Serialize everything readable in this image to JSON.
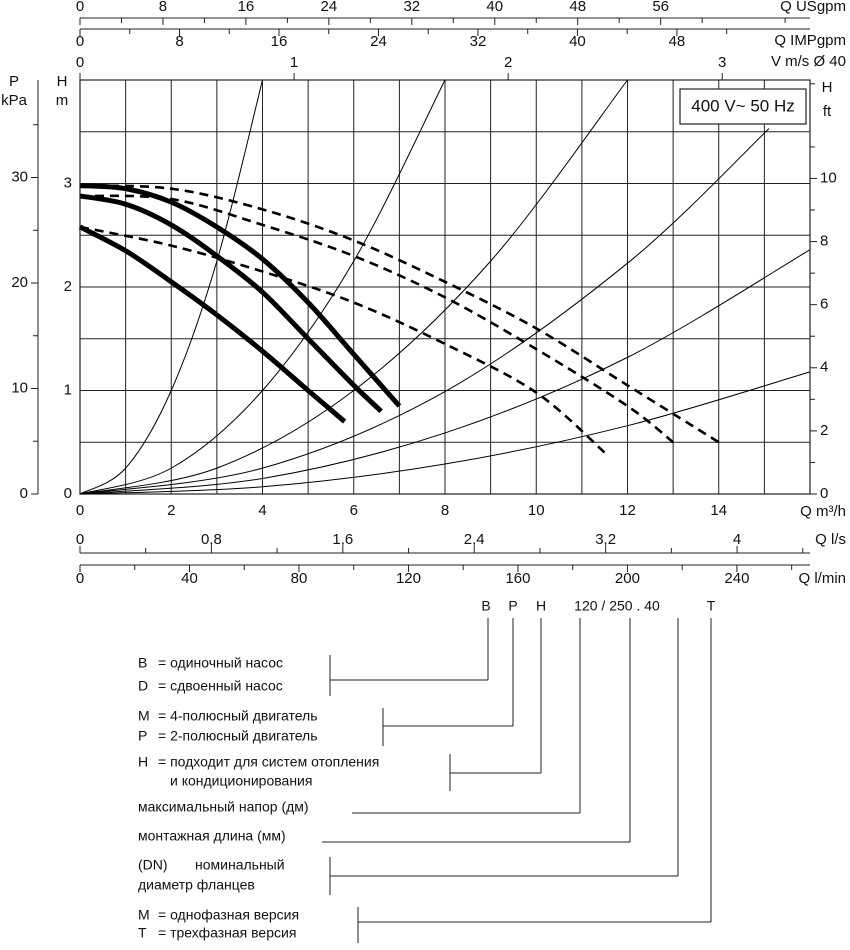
{
  "chart_data": {
    "type": "line",
    "annotation": "400 V~ 50 Hz",
    "x_label": "Q m³/h",
    "y_label": [
      "H",
      "m"
    ],
    "xlim": [
      0,
      16
    ],
    "xticks": [
      0,
      2,
      4,
      6,
      8,
      10,
      12,
      14
    ],
    "x_minor_ticks": [
      1,
      3,
      5,
      7,
      9,
      11,
      13,
      15
    ],
    "ylim": [
      0,
      4
    ],
    "yticks": [
      0,
      1,
      2,
      3
    ],
    "y_minor_ticks": [
      0.5,
      1.5,
      2.5,
      3.5
    ],
    "grid": true,
    "axes": [
      {
        "position": "top",
        "label": [
          "Q USgpm"
        ],
        "lim": [
          0,
          70.4
        ],
        "ticks": [
          0,
          8,
          16,
          24,
          32,
          40,
          48,
          56
        ],
        "minor_ticks": [
          4,
          12,
          20,
          28,
          36,
          44,
          52,
          60,
          68
        ]
      },
      {
        "position": "top",
        "label": [
          "Q IMPgpm"
        ],
        "lim": [
          0,
          58.7
        ],
        "ticks": [
          0,
          8,
          16,
          24,
          32,
          40,
          48
        ],
        "minor_ticks": [
          4,
          12,
          20,
          28,
          36,
          44,
          52
        ]
      },
      {
        "position": "top",
        "label": [
          "V m/s Ø 40"
        ],
        "lim": [
          0,
          3.41
        ],
        "ticks": [
          0,
          1,
          2,
          3
        ],
        "minor_ticks": []
      },
      {
        "position": "left",
        "label": [
          "P",
          "kPa"
        ],
        "lim": [
          0,
          39.24
        ],
        "ticks": [
          0,
          10,
          20,
          30
        ],
        "minor_ticks": [
          5,
          15,
          25,
          35
        ]
      },
      {
        "position": "right",
        "label": [
          "H",
          "ft"
        ],
        "lim": [
          0,
          13.12
        ],
        "ticks": [
          0,
          2,
          4,
          6,
          8,
          10
        ],
        "minor_ticks": [
          1,
          3,
          5,
          7,
          9,
          11,
          13
        ]
      },
      {
        "position": "bottom",
        "label": [
          "Q l/s"
        ],
        "lim": [
          0,
          4.444
        ],
        "ticks": [
          0,
          {
            "value": 0.8,
            "label": "0,8"
          },
          {
            "value": 1.6,
            "label": "1,6"
          },
          {
            "value": 2.4,
            "label": "2,4"
          },
          {
            "value": 3.2,
            "label": "3,2"
          },
          4
        ],
        "minor_ticks": [
          0.4,
          1.2,
          2,
          2.8,
          3.6,
          4.4
        ]
      },
      {
        "position": "bottom",
        "label": [
          "Q l/min"
        ],
        "lim": [
          0,
          266.7
        ],
        "ticks": [
          0,
          40,
          80,
          120,
          160,
          200,
          240
        ],
        "minor_ticks": [
          20,
          60,
          100,
          140,
          180,
          220,
          260
        ]
      }
    ],
    "series": [
      {
        "style": "thin",
        "color": "#000000",
        "x": [
          0,
          1,
          2,
          3,
          4
        ],
        "values": [
          0,
          0.25,
          1,
          2.25,
          4
        ]
      },
      {
        "style": "thin",
        "color": "#000000",
        "x": [
          0,
          2,
          4,
          6,
          8
        ],
        "values": [
          0,
          0.25,
          1,
          2.25,
          4
        ]
      },
      {
        "style": "thin",
        "color": "#000000",
        "x": [
          0,
          3,
          6,
          9,
          12
        ],
        "values": [
          0,
          0.25,
          1,
          2.25,
          4
        ]
      },
      {
        "style": "thin",
        "color": "#000000",
        "x": [
          0,
          4,
          8,
          12,
          15.1
        ],
        "values": [
          0,
          0.25,
          0.99,
          2.23,
          3.53
        ]
      },
      {
        "style": "thin",
        "color": "#000000",
        "x": [
          0,
          4,
          8,
          12,
          16
        ],
        "values": [
          0,
          0.15,
          0.59,
          1.32,
          2.36
        ]
      },
      {
        "style": "thin",
        "color": "#000000",
        "x": [
          0,
          4,
          8,
          12,
          16
        ],
        "values": [
          0,
          0.07,
          0.29,
          0.66,
          1.18
        ]
      },
      {
        "style": "solid",
        "color": "#000000",
        "x": [
          0,
          1,
          2,
          3,
          4,
          5,
          6,
          7
        ],
        "values": [
          2.98,
          2.95,
          2.82,
          2.58,
          2.27,
          1.85,
          1.35,
          0.85
        ]
      },
      {
        "style": "solid",
        "color": "#000000",
        "x": [
          0,
          1,
          2,
          3,
          4,
          5,
          6,
          6.6
        ],
        "values": [
          2.88,
          2.8,
          2.6,
          2.3,
          1.95,
          1.5,
          1.05,
          0.8
        ]
      },
      {
        "style": "solid",
        "color": "#000000",
        "x": [
          0,
          1,
          2,
          3,
          4,
          5,
          5.8
        ],
        "values": [
          2.58,
          2.35,
          2.05,
          1.73,
          1.38,
          1.0,
          0.7
        ]
      },
      {
        "style": "dashed",
        "color": "#000000",
        "x": [
          0,
          2,
          4,
          6,
          8,
          10,
          12,
          14
        ],
        "values": [
          2.98,
          2.95,
          2.75,
          2.45,
          2.05,
          1.6,
          1.05,
          0.5
        ]
      },
      {
        "style": "dashed",
        "color": "#000000",
        "x": [
          0,
          2,
          4,
          6,
          8,
          10,
          12,
          13
        ],
        "values": [
          2.88,
          2.85,
          2.6,
          2.3,
          1.9,
          1.4,
          0.85,
          0.5
        ]
      },
      {
        "style": "dashed",
        "color": "#000000",
        "x": [
          0,
          2,
          4,
          6,
          8,
          10,
          11.5
        ],
        "values": [
          2.58,
          2.4,
          2.15,
          1.85,
          1.45,
          0.98,
          0.4
        ]
      }
    ]
  },
  "designation": {
    "code": [
      "B",
      "P",
      "H",
      "120 / 250 . 40",
      "T"
    ],
    "groups": [
      {
        "items": [
          {
            "code": "B",
            "text": "= одиночный насос"
          },
          {
            "code": "D",
            "text": "= сдвоенный насос"
          }
        ]
      },
      {
        "items": [
          {
            "code": "M",
            "text": "= 4-полюсный двигатель"
          },
          {
            "code": "P",
            "text": "= 2-полюсный двигатель"
          }
        ]
      },
      {
        "items": [
          {
            "code": "H",
            "text": "= подходит для систем отопления"
          },
          {
            "text": "и кондиционирования"
          }
        ]
      },
      {
        "items": [
          {
            "text": "максимальный напор (дм)"
          }
        ]
      },
      {
        "items": [
          {
            "text": "монтажная длина (мм)"
          }
        ]
      },
      {
        "items": [
          {
            "code": "(DN)",
            "text": "номинальный"
          },
          {
            "text": "диаметр фланцев"
          }
        ]
      },
      {
        "items": [
          {
            "code": "M",
            "text": "= однофазная версия"
          },
          {
            "code": "T",
            "text": "= трехфазная версия"
          }
        ]
      }
    ]
  }
}
